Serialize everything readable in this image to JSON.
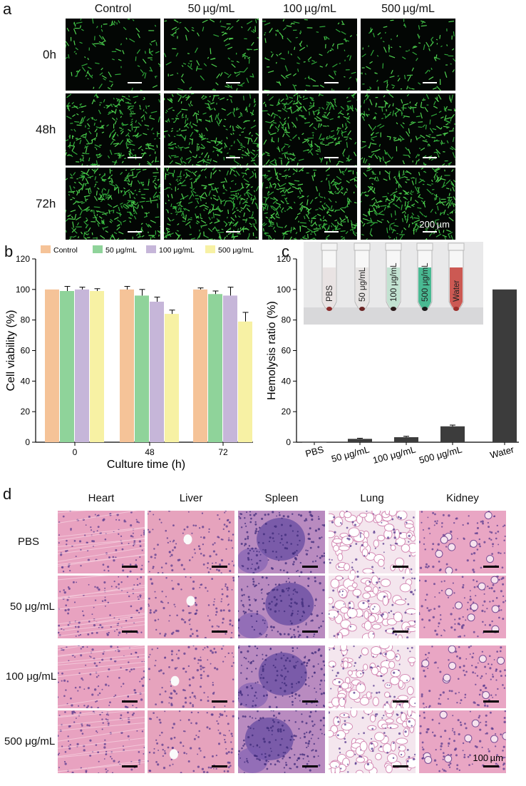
{
  "panel_a": {
    "letter": "a",
    "columns": [
      "Control",
      "50 µg/mL",
      "100 µg/mL",
      "500 µg/mL"
    ],
    "rows": [
      "0h",
      "48h",
      "72h"
    ],
    "scale_bar": "200 µm"
  },
  "panel_b": {
    "letter": "b",
    "chart_data": {
      "type": "bar",
      "categories": [
        "0",
        "48",
        "72"
      ],
      "series": [
        {
          "name": "Control",
          "values": [
            100,
            100,
            100
          ],
          "errors": [
            0,
            2,
            1
          ],
          "color": "#f5c398"
        },
        {
          "name": "50 μg/mL",
          "values": [
            99,
            96,
            97
          ],
          "errors": [
            3,
            4,
            2
          ],
          "color": "#8fd39a"
        },
        {
          "name": "100 μg/mL",
          "values": [
            100,
            92,
            96
          ],
          "errors": [
            1.5,
            3,
            5.5
          ],
          "color": "#c6b6d9"
        },
        {
          "name": "500 μg/mL",
          "values": [
            99,
            84,
            79
          ],
          "errors": [
            1.5,
            2.5,
            6
          ],
          "color": "#f7f1a4"
        }
      ],
      "xlabel": "Culture time (h)",
      "ylabel": "Cell viability (%)",
      "ylim": [
        0,
        120
      ],
      "yticks": [
        0,
        20,
        40,
        60,
        80,
        100,
        120
      ],
      "legend": "top"
    }
  },
  "panel_c": {
    "letter": "c",
    "chart_data": {
      "type": "bar",
      "categories": [
        "PBS",
        "50 μg/mL",
        "100 μg/mL",
        "500 μg/mL",
        "Water"
      ],
      "values": [
        0,
        2.2,
        3.3,
        10.4,
        100
      ],
      "errors": [
        0,
        0.4,
        0.6,
        0.8,
        0
      ],
      "color": "#3c3c3c",
      "ylabel": "Hemolysis ratio (%)",
      "ylim": [
        0,
        120
      ],
      "yticks": [
        0,
        20,
        40,
        60,
        80,
        100,
        120
      ]
    },
    "inset_tubes": [
      {
        "label": "PBS",
        "liquid": "#e8e2e2",
        "pellet": "#8a2a2a"
      },
      {
        "label": "50 μg/mL",
        "liquid": "#e6e3e1",
        "pellet": "#6a2424"
      },
      {
        "label": "100 μg/mL",
        "liquid": "#bfe0cf",
        "pellet": "#2a1a1a"
      },
      {
        "label": "500 μg/mL",
        "liquid": "#3fb58c",
        "pellet": "#1a1a1a"
      },
      {
        "label": "Water",
        "liquid": "#c9504a",
        "pellet": "#9c2e2a"
      }
    ]
  },
  "panel_d": {
    "letter": "d",
    "columns": [
      "Heart",
      "Liver",
      "Spleen",
      "Lung",
      "Kidney"
    ],
    "rows": [
      "PBS",
      "50 μg/mL",
      "100 μg/mL",
      "500 μg/mL"
    ],
    "scale_bar": "100 µm"
  }
}
